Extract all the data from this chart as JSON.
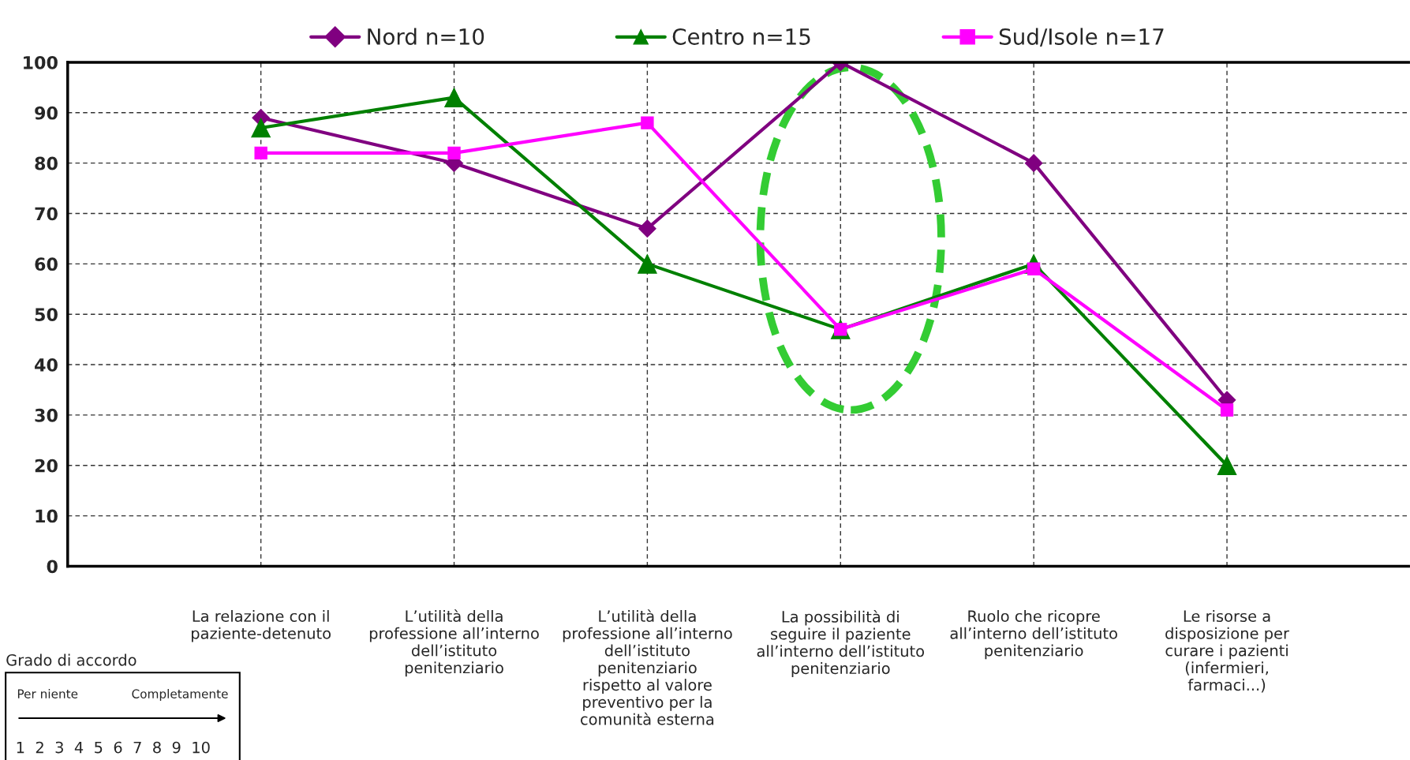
{
  "chart_data": {
    "type": "line",
    "categories": [
      "La relazione con il\npaziente-detenuto",
      "L’utilità della\nprofessione all’interno\ndell’istituto\npenitenziario",
      "L’utilità della\nprofessione all’interno\ndell’istituto\npenitenziario\nrispetto al valore\npreventivo per la\ncomunità esterna",
      "La possibilità di\nseguire il paziente\nall’interno dell’istituto\npenitenziario",
      "Ruolo che ricopre\nall’interno dell’istituto\npenitenziario",
      "Le risorse a\ndisposizione per\ncurare i pazienti\n(infermieri,\nfarmaci...)"
    ],
    "series": [
      {
        "name": "Nord n=10",
        "color": "#800080",
        "marker": "diamond",
        "values": [
          89,
          80,
          67,
          100,
          80,
          33
        ]
      },
      {
        "name": "Centro n=15",
        "color": "#008000",
        "marker": "triangle",
        "values": [
          87,
          93,
          60,
          47,
          60,
          20
        ]
      },
      {
        "name": "Sud/Isole n=17",
        "color": "#ff00ff",
        "marker": "square",
        "values": [
          82,
          82,
          88,
          47,
          59,
          31
        ]
      }
    ],
    "ylim": [
      0,
      100
    ],
    "yticks": [
      0,
      10,
      20,
      30,
      40,
      50,
      60,
      70,
      80,
      90,
      100
    ],
    "grid": true,
    "legend": "top",
    "line_style": "solid",
    "annotations": [
      "Grado di accordo",
      "Per niente",
      "Completamente",
      "1  2  3  4  5  6  7  8  9  10"
    ]
  }
}
